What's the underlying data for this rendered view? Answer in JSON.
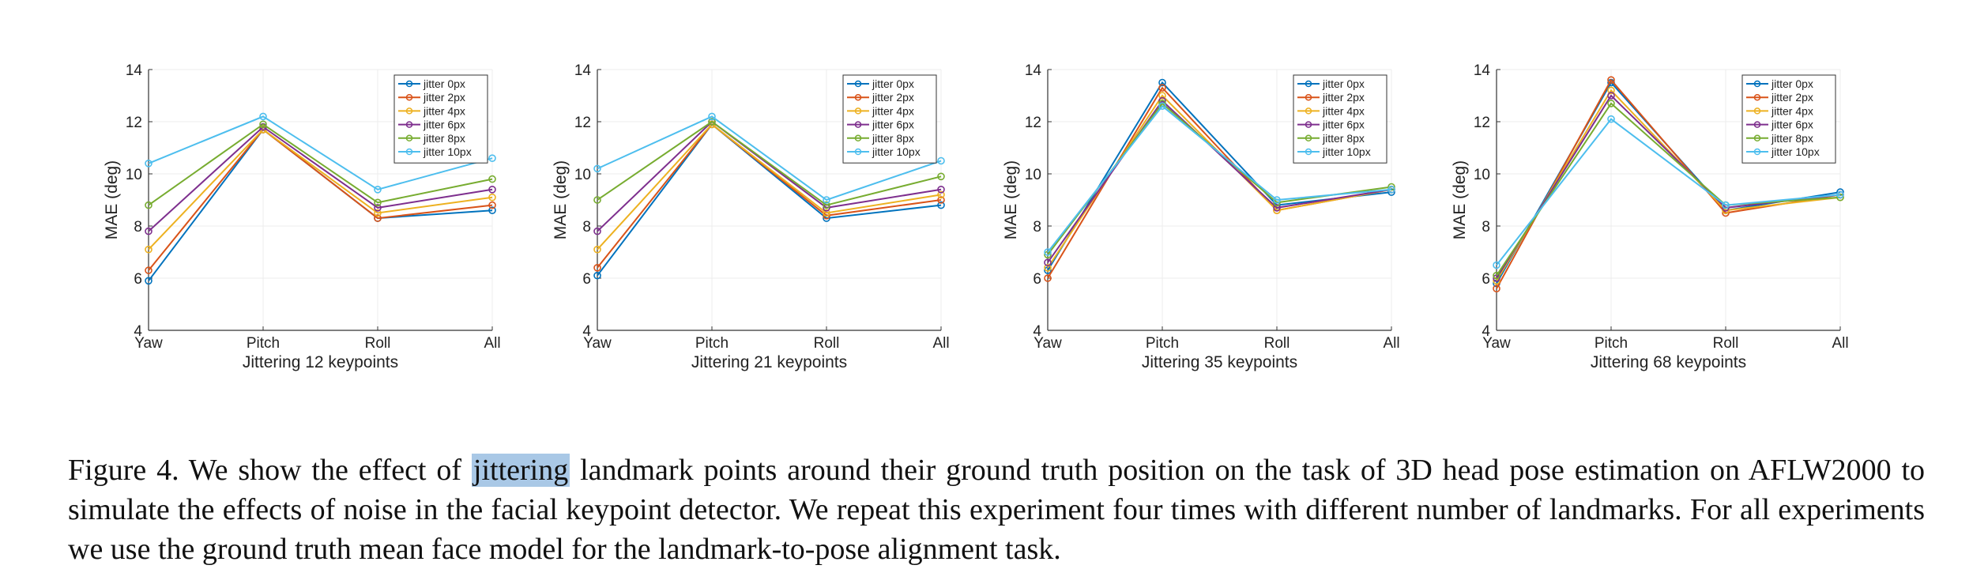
{
  "figure": {
    "caption_pre": "Figure 4. We show the effect of ",
    "caption_highlight": "jittering",
    "caption_post": " landmark points around their ground truth position on the task of 3D head pose estimation on AFLW2000 to simulate the effects of noise in the facial keypoint detector. We repeat this experiment four times with different number of landmarks. For all experiments we use the ground truth mean face model for the landmark-to-pose alignment task."
  },
  "colors": [
    "#0072bd",
    "#d95319",
    "#edb120",
    "#7e2f8e",
    "#77ac30",
    "#4dbeee"
  ],
  "chart_data": [
    {
      "type": "line",
      "xlabel": "Jittering 12 keypoints",
      "ylabel": "MAE (deg)",
      "categories": [
        "Yaw",
        "Pitch",
        "Roll",
        "All"
      ],
      "ylim": [
        4,
        14
      ],
      "yticks": [
        4,
        6,
        8,
        10,
        12,
        14
      ],
      "grid": true,
      "legend": "top-right",
      "series": [
        {
          "name": "jitter 0px",
          "values": [
            5.9,
            11.7,
            8.3,
            8.6
          ]
        },
        {
          "name": "jitter 2px",
          "values": [
            6.3,
            11.7,
            8.3,
            8.8
          ]
        },
        {
          "name": "jitter 4px",
          "values": [
            7.1,
            11.7,
            8.5,
            9.1
          ]
        },
        {
          "name": "jitter 6px",
          "values": [
            7.8,
            11.8,
            8.7,
            9.4
          ]
        },
        {
          "name": "jitter 8px",
          "values": [
            8.8,
            11.9,
            8.9,
            9.8
          ]
        },
        {
          "name": "jitter 10px",
          "values": [
            10.4,
            12.2,
            9.4,
            10.6
          ]
        }
      ]
    },
    {
      "type": "line",
      "xlabel": "Jittering 21 keypoints",
      "ylabel": "MAE (deg)",
      "categories": [
        "Yaw",
        "Pitch",
        "Roll",
        "All"
      ],
      "ylim": [
        4,
        14
      ],
      "yticks": [
        4,
        6,
        8,
        10,
        12,
        14
      ],
      "grid": true,
      "legend": "top-right",
      "series": [
        {
          "name": "jitter 0px",
          "values": [
            6.1,
            11.9,
            8.3,
            8.8
          ]
        },
        {
          "name": "jitter 2px",
          "values": [
            6.4,
            11.9,
            8.4,
            9.0
          ]
        },
        {
          "name": "jitter 4px",
          "values": [
            7.1,
            11.9,
            8.5,
            9.2
          ]
        },
        {
          "name": "jitter 6px",
          "values": [
            7.8,
            12.0,
            8.7,
            9.4
          ]
        },
        {
          "name": "jitter 8px",
          "values": [
            9.0,
            12.0,
            8.8,
            9.9
          ]
        },
        {
          "name": "jitter 10px",
          "values": [
            10.2,
            12.2,
            9.0,
            10.5
          ]
        }
      ]
    },
    {
      "type": "line",
      "xlabel": "Jittering 35 keypoints",
      "ylabel": "MAE (deg)",
      "categories": [
        "Yaw",
        "Pitch",
        "Roll",
        "All"
      ],
      "ylim": [
        4,
        14
      ],
      "yticks": [
        4,
        6,
        8,
        10,
        12,
        14
      ],
      "grid": true,
      "legend": "top-right",
      "series": [
        {
          "name": "jitter 0px",
          "values": [
            6.3,
            13.5,
            8.8,
            9.3
          ]
        },
        {
          "name": "jitter 2px",
          "values": [
            6.0,
            13.3,
            8.6,
            9.4
          ]
        },
        {
          "name": "jitter 4px",
          "values": [
            6.4,
            13.0,
            8.6,
            9.4
          ]
        },
        {
          "name": "jitter 6px",
          "values": [
            6.6,
            12.8,
            8.7,
            9.4
          ]
        },
        {
          "name": "jitter 8px",
          "values": [
            6.9,
            12.7,
            8.9,
            9.5
          ]
        },
        {
          "name": "jitter 10px",
          "values": [
            7.0,
            12.6,
            9.0,
            9.4
          ]
        }
      ]
    },
    {
      "type": "line",
      "xlabel": "Jittering 68 keypoints",
      "ylabel": "MAE (deg)",
      "categories": [
        "Yaw",
        "Pitch",
        "Roll",
        "All"
      ],
      "ylim": [
        4,
        14
      ],
      "yticks": [
        4,
        6,
        8,
        10,
        12,
        14
      ],
      "grid": true,
      "legend": "top-right",
      "series": [
        {
          "name": "jitter 0px",
          "values": [
            5.8,
            13.5,
            8.6,
            9.3
          ]
        },
        {
          "name": "jitter 2px",
          "values": [
            5.6,
            13.6,
            8.5,
            9.2
          ]
        },
        {
          "name": "jitter 4px",
          "values": [
            5.9,
            13.2,
            8.6,
            9.1
          ]
        },
        {
          "name": "jitter 6px",
          "values": [
            6.0,
            13.0,
            8.7,
            9.2
          ]
        },
        {
          "name": "jitter 8px",
          "values": [
            6.1,
            12.7,
            8.8,
            9.1
          ]
        },
        {
          "name": "jitter 10px",
          "values": [
            6.5,
            12.1,
            8.8,
            9.2
          ]
        }
      ]
    }
  ]
}
